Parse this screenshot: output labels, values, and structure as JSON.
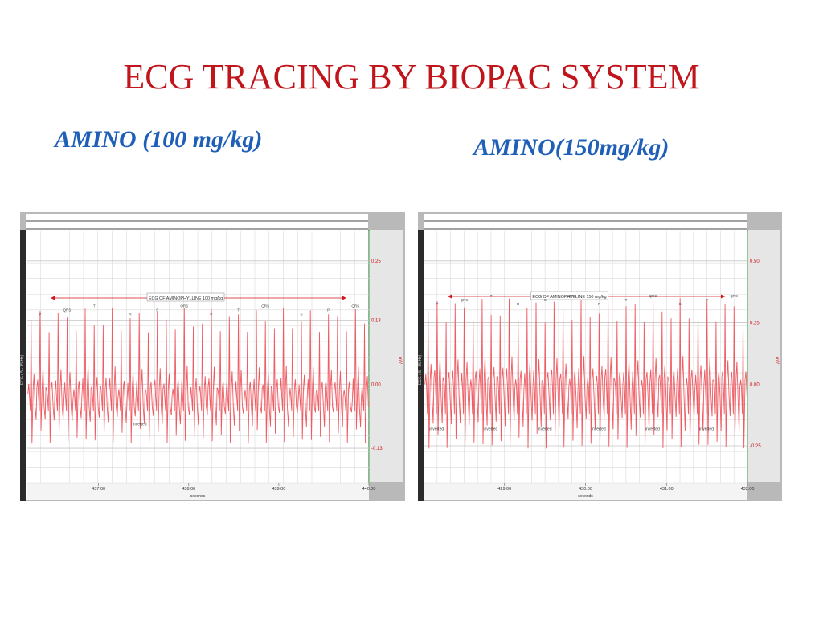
{
  "slide": {
    "title": "ECG TRACING BY BIOPAC SYSTEM"
  },
  "subtitles": {
    "left": "AMINO (100 mg/kg)",
    "right": "AMINO(150mg/kg)"
  },
  "colors": {
    "title": "#c0151b",
    "subtitle": "#1f5fb8",
    "trace": "#ee5c63",
    "annotation": "#d0161e",
    "grid": "#d9d9d9",
    "panel_frame": "#b9b9b9",
    "green_marker": "#3aa24a"
  },
  "panels": [
    {
      "id": "left",
      "annotation": "ECG OF AMINOPHYLLINE 100 mg/kg",
      "channel_label": "ECG (.5 - 35 Hz)",
      "unit": "mV",
      "x_ticks": [
        "437.00",
        "438.00",
        "439.00",
        "440.00"
      ],
      "x_label": "seconds",
      "y_ticks": [
        "0.25",
        "0.13",
        "0.00",
        "-0.13"
      ],
      "wave_labels": [
        "P",
        "QRS",
        "T",
        "R",
        "S",
        "QRS",
        "P",
        "T",
        "QRS",
        "S",
        "P",
        "QRS"
      ],
      "inverted_labels": [
        "inverted"
      ]
    },
    {
      "id": "right",
      "annotation": "ECG OF AMINOPHYLLINE 150 mg/kg",
      "channel_label": "ECG (.5 - 35 Hz)",
      "unit": "mV",
      "x_ticks": [
        "429.00",
        "430.00",
        "431.00",
        "432.00"
      ],
      "x_label": "seconds",
      "y_ticks": [
        "0.50",
        "0.25",
        "0.00",
        "-0.25"
      ],
      "wave_labels": [
        "P",
        "QRS",
        "T",
        "R",
        "S",
        "QRS",
        "P",
        "T",
        "QRS",
        "S",
        "P",
        "QRS"
      ],
      "inverted_labels": [
        "inverted",
        "inverted",
        "inverted",
        "inverted",
        "inverted",
        "inverted"
      ]
    }
  ],
  "chart_data": [
    {
      "type": "line",
      "title": "ECG OF AMINOPHYLLINE 100 mg/kg",
      "xlabel": "seconds",
      "ylabel": "mV",
      "xlim": [
        436.2,
        440.0
      ],
      "ylim": [
        -0.2,
        0.31
      ],
      "x_ticks": [
        437.0,
        438.0,
        439.0,
        440.0
      ],
      "y_ticks": [
        0.25,
        0.13,
        0.0,
        -0.13
      ],
      "beats": 38,
      "r_peak_mv": 0.13,
      "baseline_mv": -0.02,
      "trough_mv": -0.09,
      "grid": true
    },
    {
      "type": "line",
      "title": "ECG OF AMINOPHYLLINE 150 mg/kg",
      "xlabel": "seconds",
      "ylabel": "mV",
      "xlim": [
        428.0,
        432.0
      ],
      "ylim": [
        -0.4,
        0.62
      ],
      "x_ticks": [
        429.0,
        430.0,
        431.0,
        432.0
      ],
      "y_ticks": [
        0.5,
        0.25,
        0.0,
        -0.25
      ],
      "beats": 36,
      "r_peak_mv": 0.3,
      "baseline_mv": 0.0,
      "trough_mv": -0.2,
      "grid": true
    }
  ]
}
